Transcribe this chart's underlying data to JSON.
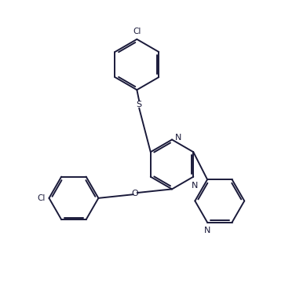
{
  "background_color": "#ffffff",
  "line_color": "#1a1a3a",
  "text_color": "#1a1a3a",
  "line_width": 1.4,
  "figsize": [
    3.63,
    3.75
  ],
  "dpi": 100,
  "xlim": [
    0,
    10
  ],
  "ylim": [
    0,
    10.3
  ]
}
